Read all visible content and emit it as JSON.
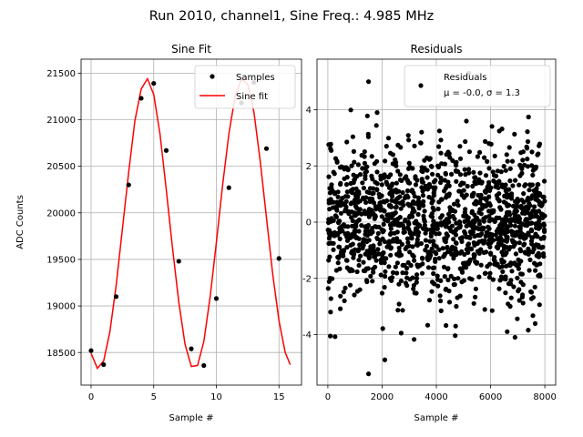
{
  "figure": {
    "suptitle": "Run 2010, channel1, Sine Freq.: 4.985 MHz"
  },
  "chart_data": [
    {
      "type": "line",
      "title": "Sine Fit",
      "xlabel": "Sample #",
      "ylabel": "ADC Counts",
      "xlim": [
        -0.8,
        16.8
      ],
      "ylim": [
        18150,
        21650
      ],
      "xticks": [
        0,
        5,
        10,
        15
      ],
      "yticks": [
        18500,
        19000,
        19500,
        20000,
        20500,
        21000,
        21500
      ],
      "grid": true,
      "legend_position": "top-right",
      "series": [
        {
          "name": "Samples",
          "style": "points",
          "color": "#000000",
          "x": [
            0,
            1,
            2,
            3,
            4,
            5,
            6,
            7,
            8,
            9,
            10,
            11,
            12,
            13,
            14,
            15
          ],
          "y": [
            18520,
            18370,
            19100,
            20300,
            21230,
            21390,
            20670,
            19480,
            18540,
            18360,
            19080,
            20270,
            21180,
            21400,
            20690,
            19510
          ]
        },
        {
          "name": "Sine fit",
          "style": "line",
          "color": "#ff0000",
          "x": [
            0.0,
            0.5,
            1.0,
            1.5,
            2.0,
            2.5,
            3.0,
            3.5,
            4.0,
            4.5,
            5.0,
            5.5,
            6.0,
            6.5,
            7.0,
            7.5,
            8.0,
            8.5,
            9.0,
            9.5,
            10.0,
            10.5,
            11.0,
            11.5,
            12.0,
            12.5,
            13.0,
            13.5,
            14.0,
            14.5,
            15.0,
            15.5,
            15.9
          ],
          "y": [
            18490,
            18330,
            18410,
            18720,
            19220,
            19830,
            20440,
            20990,
            21330,
            21440,
            21270,
            20850,
            20250,
            19620,
            19040,
            18590,
            18350,
            18360,
            18620,
            19090,
            19680,
            20300,
            20850,
            21250,
            21440,
            21380,
            21080,
            20560,
            19950,
            19340,
            18840,
            18500,
            18370
          ]
        }
      ]
    },
    {
      "type": "scatter",
      "title": "Residuals",
      "xlabel": "Sample #",
      "ylabel": "",
      "xlim": [
        -400,
        8400
      ],
      "ylim": [
        -5.8,
        5.8
      ],
      "xticks": [
        0,
        2000,
        4000,
        6000,
        8000
      ],
      "yticks": [
        -4,
        -2,
        0,
        2,
        4
      ],
      "grid": true,
      "legend_position": "top-right",
      "legend": [
        "Residuals",
        "μ = -0.0, σ = 1.3"
      ],
      "series": [
        {
          "name": "Residuals",
          "color": "#000000",
          "n_points": 8000,
          "mean": -0.0,
          "sigma": 1.3,
          "x_range": [
            0,
            8000
          ],
          "notable_points": [
            {
              "x": 1500,
              "y": 5.0
            },
            {
              "x": 1500,
              "y": -5.4
            },
            {
              "x": 2100,
              "y": -4.9
            },
            {
              "x": 5200,
              "y": 5.3
            },
            {
              "x": 100,
              "y": -3.2
            },
            {
              "x": 6900,
              "y": -4.1
            }
          ]
        }
      ]
    }
  ]
}
